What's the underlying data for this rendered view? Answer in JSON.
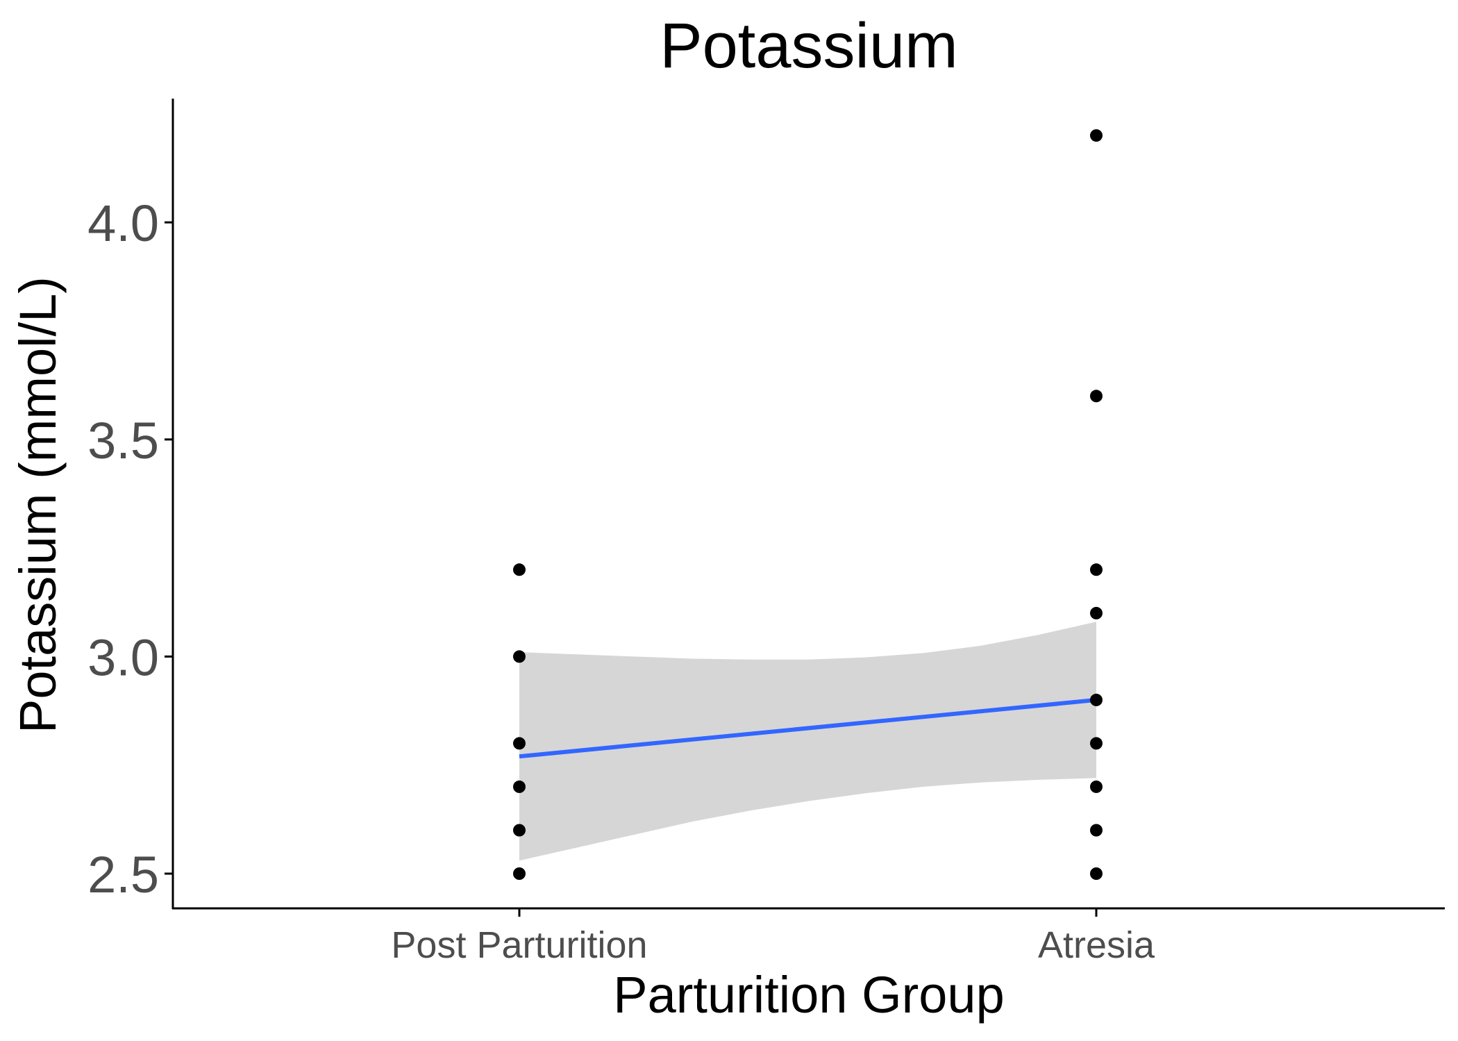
{
  "chart_data": {
    "type": "scatter",
    "title": "Potassium",
    "xlabel": "Parturition Group",
    "ylabel": "Potassium (mmol/L)",
    "categories": [
      "Post Parturition",
      "Atresia"
    ],
    "yticks": [
      "2.5",
      "3.0",
      "3.5",
      "4.0"
    ],
    "ylim": [
      2.42,
      4.285
    ],
    "grid": false,
    "legend": "none",
    "points": [
      {
        "x": "Post Parturition",
        "y": 3.2
      },
      {
        "x": "Post Parturition",
        "y": 3.0
      },
      {
        "x": "Post Parturition",
        "y": 2.8
      },
      {
        "x": "Post Parturition",
        "y": 2.7
      },
      {
        "x": "Post Parturition",
        "y": 2.6
      },
      {
        "x": "Post Parturition",
        "y": 2.5
      },
      {
        "x": "Atresia",
        "y": 4.2
      },
      {
        "x": "Atresia",
        "y": 3.6
      },
      {
        "x": "Atresia",
        "y": 3.2
      },
      {
        "x": "Atresia",
        "y": 3.1
      },
      {
        "x": "Atresia",
        "y": 2.9
      },
      {
        "x": "Atresia",
        "y": 2.8
      },
      {
        "x": "Atresia",
        "y": 2.7
      },
      {
        "x": "Atresia",
        "y": 2.6
      },
      {
        "x": "Atresia",
        "y": 2.5
      }
    ],
    "fit_line": {
      "method": "linear",
      "color": "#3366ff",
      "start": {
        "x": "Post Parturition",
        "y": 2.77
      },
      "end": {
        "x": "Atresia",
        "y": 2.9
      }
    },
    "confidence_band": {
      "color": "#d6d6d6",
      "upper": [
        {
          "t": 0.0,
          "y": 3.01
        },
        {
          "t": 0.1,
          "y": 3.005
        },
        {
          "t": 0.2,
          "y": 3.0
        },
        {
          "t": 0.3,
          "y": 2.995
        },
        {
          "t": 0.4,
          "y": 2.993
        },
        {
          "t": 0.5,
          "y": 2.993
        },
        {
          "t": 0.6,
          "y": 2.998
        },
        {
          "t": 0.7,
          "y": 3.008
        },
        {
          "t": 0.8,
          "y": 3.025
        },
        {
          "t": 0.9,
          "y": 3.05
        },
        {
          "t": 1.0,
          "y": 3.08
        }
      ],
      "lower": [
        {
          "t": 0.0,
          "y": 2.53
        },
        {
          "t": 0.1,
          "y": 2.56
        },
        {
          "t": 0.2,
          "y": 2.59
        },
        {
          "t": 0.3,
          "y": 2.62
        },
        {
          "t": 0.4,
          "y": 2.645
        },
        {
          "t": 0.5,
          "y": 2.667
        },
        {
          "t": 0.6,
          "y": 2.685
        },
        {
          "t": 0.7,
          "y": 2.7
        },
        {
          "t": 0.8,
          "y": 2.71
        },
        {
          "t": 0.9,
          "y": 2.716
        },
        {
          "t": 1.0,
          "y": 2.72
        }
      ]
    },
    "colors": {
      "points": "#000000",
      "axis": "#000000"
    }
  }
}
